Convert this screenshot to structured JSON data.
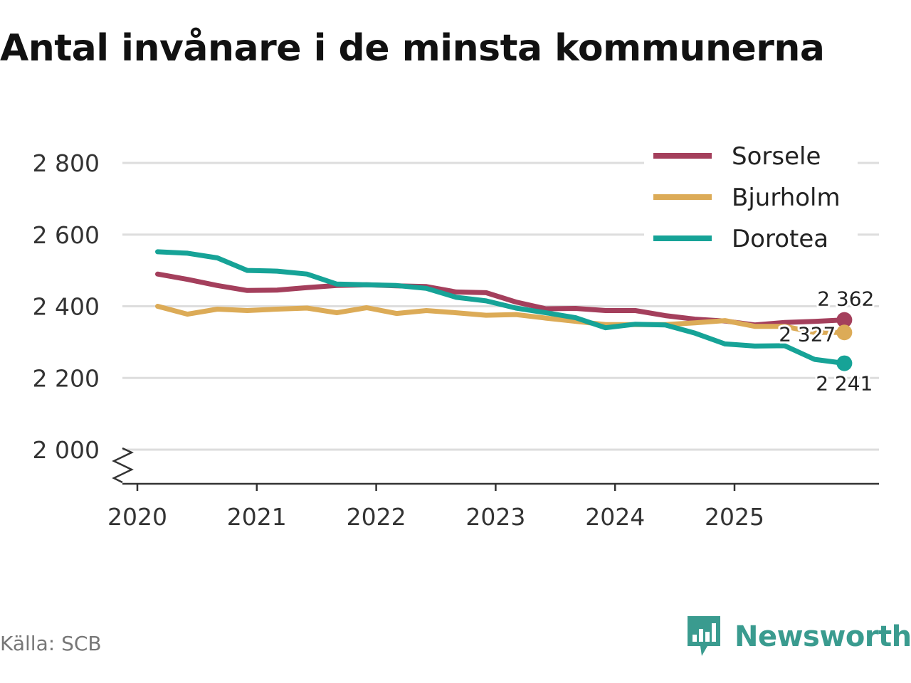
{
  "title": "Antal invånare i de minsta kommunerna",
  "source": "Källa: SCB",
  "brand": {
    "name": "Newsworthy",
    "icon": "newsworthy-logo-icon",
    "color": "#3a9b8f"
  },
  "chart_data": {
    "type": "line",
    "title": "Antal invånare i de minsta kommunerna",
    "xlabel": "",
    "ylabel": "",
    "xlim": [
      2019.9,
      2026.25
    ],
    "ylim": [
      1900,
      2900
    ],
    "yticks": [
      2000,
      2200,
      2400,
      2600,
      2800
    ],
    "ytick_labels": [
      "2 000",
      "2 200",
      "2 400",
      "2 600",
      "2 800"
    ],
    "xticks": [
      2020,
      2021,
      2022,
      2023,
      2024,
      2025
    ],
    "xtick_labels": [
      "2020",
      "2021",
      "2022",
      "2023",
      "2024",
      "2025"
    ],
    "grid": true,
    "axis_break": true,
    "legend_position": "top-right",
    "x": [
      2020.17,
      2020.42,
      2020.67,
      2020.92,
      2021.17,
      2021.42,
      2021.67,
      2021.92,
      2022.17,
      2022.42,
      2022.67,
      2022.92,
      2023.17,
      2023.42,
      2023.67,
      2023.92,
      2024.17,
      2024.42,
      2024.67,
      2024.92,
      2025.17,
      2025.42,
      2025.67,
      2025.92
    ],
    "series": [
      {
        "name": "Sorsele",
        "color": "#a43f5c",
        "values": [
          2490,
          2475,
          2458,
          2444,
          2445,
          2452,
          2458,
          2460,
          2457,
          2455,
          2440,
          2438,
          2412,
          2393,
          2394,
          2388,
          2388,
          2374,
          2364,
          2359,
          2348,
          2355,
          2358,
          2362
        ],
        "end_label": "2 362"
      },
      {
        "name": "Bjurholm",
        "color": "#dcab57",
        "values": [
          2400,
          2378,
          2392,
          2388,
          2392,
          2395,
          2382,
          2396,
          2380,
          2388,
          2382,
          2375,
          2377,
          2367,
          2358,
          2349,
          2349,
          2349,
          2354,
          2360,
          2344,
          2344,
          2327,
          2327
        ],
        "end_label": "2 327"
      },
      {
        "name": "Dorotea",
        "color": "#16a397",
        "values": [
          2552,
          2548,
          2535,
          2500,
          2498,
          2490,
          2462,
          2460,
          2458,
          2450,
          2425,
          2415,
          2395,
          2382,
          2368,
          2340,
          2350,
          2348,
          2325,
          2295,
          2289,
          2290,
          2252,
          2241
        ],
        "end_label": "2 241"
      }
    ]
  }
}
